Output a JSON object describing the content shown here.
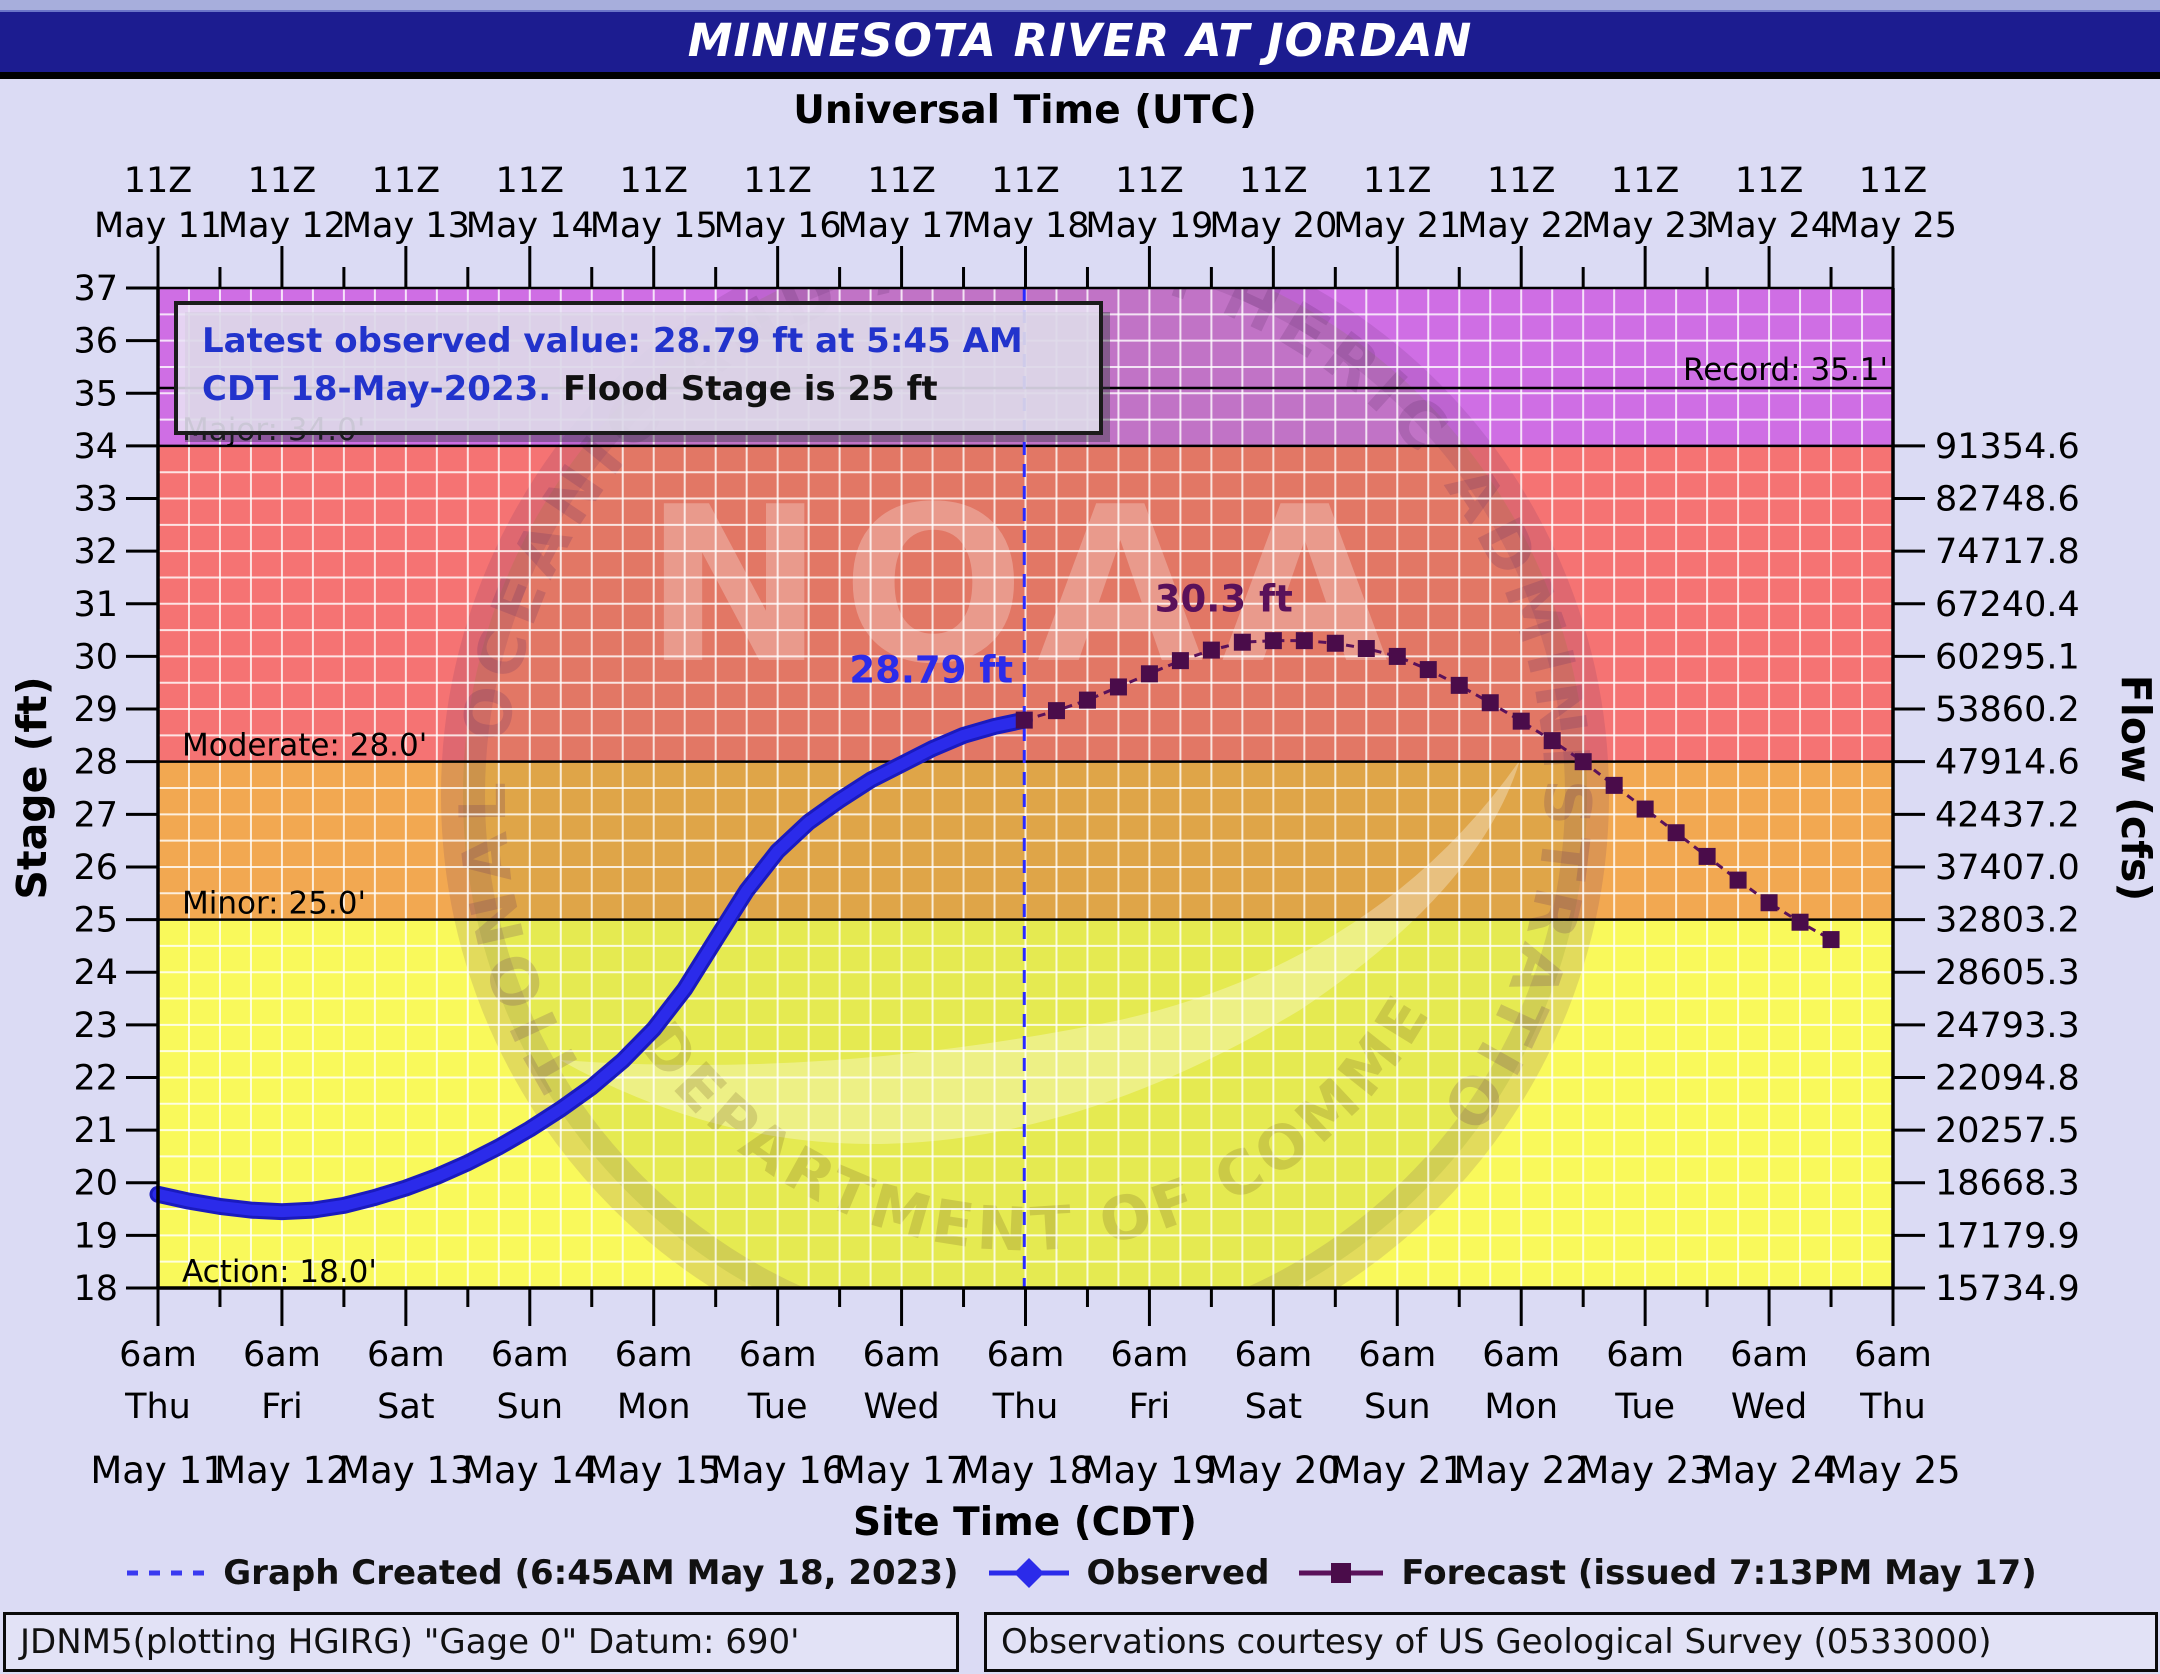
{
  "title": {
    "text": "MINNESOTA RIVER AT JORDAN"
  },
  "top_axis": {
    "label": "Universal Time (UTC)",
    "utc_tick": "11Z"
  },
  "bottom_axis": {
    "label": "Site Time (CDT)",
    "time_tick": "6am"
  },
  "left_axis": {
    "label": "Stage (ft)",
    "ticks": [
      37,
      36,
      35,
      34,
      33,
      32,
      31,
      30,
      29,
      28,
      27,
      26,
      25,
      24,
      23,
      22,
      21,
      20,
      19,
      18
    ]
  },
  "right_axis": {
    "label": "Flow (cfs)",
    "ticks": [
      {
        "stage": 34,
        "flow": "91354.6"
      },
      {
        "stage": 33,
        "flow": "82748.6"
      },
      {
        "stage": 32,
        "flow": "74717.8"
      },
      {
        "stage": 31,
        "flow": "67240.4"
      },
      {
        "stage": 30,
        "flow": "60295.1"
      },
      {
        "stage": 29,
        "flow": "53860.2"
      },
      {
        "stage": 28,
        "flow": "47914.6"
      },
      {
        "stage": 27,
        "flow": "42437.2"
      },
      {
        "stage": 26,
        "flow": "37407.0"
      },
      {
        "stage": 25,
        "flow": "32803.2"
      },
      {
        "stage": 24,
        "flow": "28605.3"
      },
      {
        "stage": 23,
        "flow": "24793.3"
      },
      {
        "stage": 22,
        "flow": "22094.8"
      },
      {
        "stage": 21,
        "flow": "20257.5"
      },
      {
        "stage": 20,
        "flow": "18668.3"
      },
      {
        "stage": 19,
        "flow": "17179.9"
      },
      {
        "stage": 18,
        "flow": "15734.9"
      }
    ]
  },
  "annotations": {
    "info_box": {
      "line1": "Latest observed value: 28.79 ft at 5:45 AM",
      "line2_blue": "CDT 18-May-2023.",
      "line2_black": " Flood Stage is 25 ft"
    },
    "record_label": "Record: 35.1'",
    "major_label": "Major: 34.0'",
    "moderate_label": "Moderate: 28.0'",
    "minor_label": "Minor: 25.0'",
    "action_label": "Action: 18.0'",
    "observed_value_label": "28.79 ft",
    "forecast_crest_label": "30.3 ft"
  },
  "legend": {
    "items": [
      {
        "sample": "graph-created-dashed-line",
        "label": "Graph Created (6:45AM May 18, 2023)"
      },
      {
        "sample": "observed-line-diamond",
        "label": "Observed"
      },
      {
        "sample": "forecast-line-square",
        "label": "Forecast (issued 7:13PM May 17)"
      }
    ]
  },
  "footer": {
    "left": "JDNM5(plotting HGIRG) \"Gage 0\" Datum: 690'",
    "right": "Observations courtesy of US Geological Survey (0533000)"
  },
  "watermark": {
    "ring_text": "NATIONAL OCEANIC AND ATMOSPHERIC ADMINISTRATION",
    "bottom_text": "U.S. DEPARTMENT OF COMMERCE",
    "center_text": "NOAA"
  },
  "colors": {
    "background": "#DBDBF4",
    "title_bar": "#1C1C90",
    "zone_action": "#F9F95B",
    "zone_minor": "#F2A851",
    "zone_moderate": "#F57373",
    "zone_major": "#CF6EE4",
    "gridline": "#FFFFFF",
    "observed": "#2B2BEA",
    "observed_dark": "#1A1ABE",
    "forecast": "#5A115A",
    "forecast_marker": "#4A0C4A",
    "created_line": "#2A2AFF",
    "info_text_blue": "#2233CC",
    "label_text": "#000000"
  },
  "chart_data": {
    "type": "line",
    "title": "MINNESOTA RIVER AT JORDAN",
    "xlabel": "Site Time (CDT) / Universal Time (UTC)",
    "ylabel_left": "Stage (ft)",
    "ylabel_right": "Flow (cfs)",
    "ylim": [
      18,
      37
    ],
    "x_span_days": 14,
    "x_unit": "days since May 11 2023 6:00 AM CDT (11Z)",
    "dates": [
      "May 11",
      "May 12",
      "May 13",
      "May 14",
      "May 15",
      "May 16",
      "May 17",
      "May 18",
      "May 19",
      "May 20",
      "May 21",
      "May 22",
      "May 23",
      "May 24",
      "May 25"
    ],
    "weekdays": [
      "Thu",
      "Fri",
      "Sat",
      "Sun",
      "Mon",
      "Tue",
      "Wed",
      "Thu",
      "Fri",
      "Sat",
      "Sun",
      "Mon",
      "Tue",
      "Wed",
      "Thu"
    ],
    "grid": {
      "x_step_days": 0.25,
      "y_step_ft": 0.5
    },
    "flood_zones": [
      {
        "name": "action",
        "from": 18,
        "to": 25
      },
      {
        "name": "minor",
        "from": 25,
        "to": 28
      },
      {
        "name": "moderate",
        "from": 28,
        "to": 34
      },
      {
        "name": "major",
        "from": 34,
        "to": 37
      }
    ],
    "flood_categories": {
      "action": 18.0,
      "minor": 25.0,
      "moderate": 28.0,
      "major": 34.0,
      "record": 35.1
    },
    "flood_stage_ft": 25,
    "graph_created_day": 6.99,
    "latest_observed": {
      "stage_ft": 28.79,
      "time": "5:45 AM CDT 18-May-2023"
    },
    "crest": {
      "stage_ft": 30.3,
      "label_day": 8.6,
      "label_stage": 30.85
    },
    "observed_label_pos": {
      "day_x_end": 6.9,
      "stage": 29.5
    },
    "series": [
      {
        "name": "Observed",
        "points": [
          [
            0,
            19.78
          ],
          [
            0.25,
            19.65
          ],
          [
            0.5,
            19.55
          ],
          [
            0.75,
            19.48
          ],
          [
            1,
            19.45
          ],
          [
            1.25,
            19.48
          ],
          [
            1.5,
            19.57
          ],
          [
            1.75,
            19.72
          ],
          [
            2,
            19.9
          ],
          [
            2.25,
            20.12
          ],
          [
            2.5,
            20.38
          ],
          [
            2.75,
            20.68
          ],
          [
            3,
            21.02
          ],
          [
            3.25,
            21.4
          ],
          [
            3.5,
            21.82
          ],
          [
            3.75,
            22.32
          ],
          [
            4,
            22.92
          ],
          [
            4.25,
            23.68
          ],
          [
            4.5,
            24.62
          ],
          [
            4.75,
            25.55
          ],
          [
            5,
            26.3
          ],
          [
            5.25,
            26.85
          ],
          [
            5.5,
            27.27
          ],
          [
            5.75,
            27.65
          ],
          [
            6,
            27.95
          ],
          [
            6.25,
            28.25
          ],
          [
            6.5,
            28.5
          ],
          [
            6.75,
            28.67
          ],
          [
            6.99,
            28.79
          ]
        ]
      },
      {
        "name": "Forecast",
        "points": [
          [
            6.99,
            28.79
          ],
          [
            7.25,
            28.97
          ],
          [
            7.5,
            29.17
          ],
          [
            7.75,
            29.42
          ],
          [
            8,
            29.67
          ],
          [
            8.25,
            29.92
          ],
          [
            8.5,
            30.12
          ],
          [
            8.75,
            30.27
          ],
          [
            9,
            30.3
          ],
          [
            9.25,
            30.3
          ],
          [
            9.5,
            30.25
          ],
          [
            9.75,
            30.15
          ],
          [
            10,
            30.0
          ],
          [
            10.25,
            29.75
          ],
          [
            10.5,
            29.45
          ],
          [
            10.75,
            29.12
          ],
          [
            11,
            28.77
          ],
          [
            11.25,
            28.4
          ],
          [
            11.5,
            28.0
          ],
          [
            11.75,
            27.55
          ],
          [
            12,
            27.1
          ],
          [
            12.25,
            26.65
          ],
          [
            12.5,
            26.2
          ],
          [
            12.75,
            25.75
          ],
          [
            13,
            25.32
          ],
          [
            13.25,
            24.95
          ],
          [
            13.5,
            24.62
          ]
        ]
      }
    ]
  }
}
